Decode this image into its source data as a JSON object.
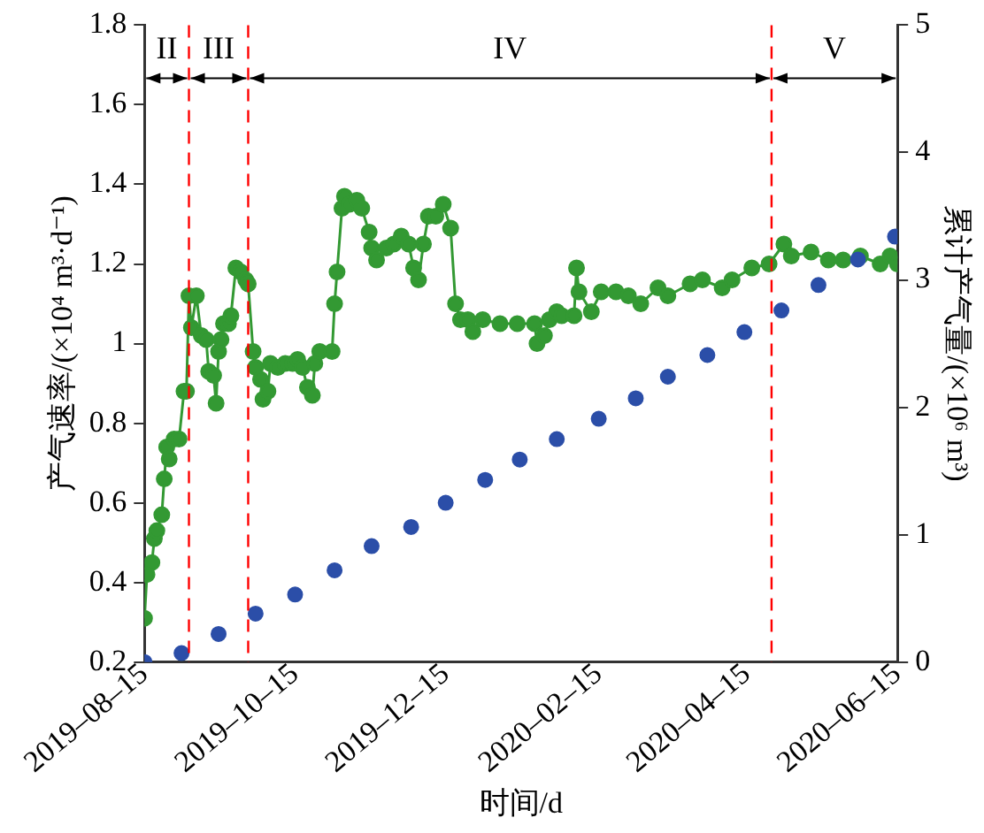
{
  "chart_data": {
    "type": "line",
    "xlabel": "时间/d",
    "ylabel": "产气速率/(×10⁴ m³·d⁻¹)",
    "y2label": "累计产气量/(×10⁶ m³)",
    "xlim": [
      "2019-08-15",
      "2020-06-15"
    ],
    "xticks": [
      {
        "value": "2019-08-15",
        "label": "2019–08–15"
      },
      {
        "value": "2019-10-15",
        "label": "2019–10–15"
      },
      {
        "value": "2019-12-15",
        "label": "2019–12–15"
      },
      {
        "value": "2020-02-15",
        "label": "2020–02–15"
      },
      {
        "value": "2020-04-15",
        "label": "2020–04–15"
      },
      {
        "value": "2020-06-15",
        "label": "2020–06–15"
      }
    ],
    "ylim": [
      0.2,
      1.8
    ],
    "yticks": [
      0.2,
      0.4,
      0.6,
      0.8,
      1.0,
      1.2,
      1.4,
      1.6,
      1.8
    ],
    "y2lim": [
      0,
      5
    ],
    "y2ticks": [
      0,
      1,
      2,
      3,
      4,
      5
    ],
    "grid": false,
    "legend": false,
    "marker": "circle",
    "series": [
      {
        "color": "#339933",
        "line_style": "solid",
        "x": [
          "2019-08-15",
          "2019-08-16",
          "2019-08-18",
          "2019-08-19",
          "2019-08-20",
          "2019-08-22",
          "2019-08-23",
          "2019-08-24",
          "2019-08-25",
          "2019-08-27",
          "2019-08-29",
          "2019-08-31",
          "2019-09-01",
          "2019-09-02",
          "2019-09-03",
          "2019-09-05",
          "2019-09-07",
          "2019-09-09",
          "2019-09-10",
          "2019-09-12",
          "2019-09-13",
          "2019-09-14",
          "2019-09-15",
          "2019-09-16",
          "2019-09-18",
          "2019-09-19",
          "2019-09-21",
          "2019-09-23",
          "2019-09-25",
          "2019-09-26",
          "2019-09-28",
          "2019-09-29",
          "2019-10-01",
          "2019-10-02",
          "2019-10-04",
          "2019-10-05",
          "2019-10-08",
          "2019-10-11",
          "2019-10-14",
          "2019-10-16",
          "2019-10-18",
          "2019-10-20",
          "2019-10-22",
          "2019-10-23",
          "2019-10-25",
          "2019-10-30",
          "2019-10-31",
          "2019-11-01",
          "2019-11-03",
          "2019-11-04",
          "2019-11-06",
          "2019-11-09",
          "2019-11-11",
          "2019-11-14",
          "2019-11-15",
          "2019-11-17",
          "2019-11-21",
          "2019-11-24",
          "2019-11-27",
          "2019-11-30",
          "2019-12-02",
          "2019-12-04",
          "2019-12-06",
          "2019-12-08",
          "2019-12-11",
          "2019-12-14",
          "2019-12-17",
          "2019-12-19",
          "2019-12-21",
          "2019-12-24",
          "2019-12-26",
          "2019-12-30",
          "2020-01-06",
          "2020-01-13",
          "2020-01-20",
          "2020-01-21",
          "2020-01-24",
          "2020-01-26",
          "2020-01-29",
          "2020-01-31",
          "2020-02-05",
          "2020-02-06",
          "2020-02-07",
          "2020-02-12",
          "2020-02-16",
          "2020-02-22",
          "2020-02-27",
          "2020-03-03",
          "2020-03-10",
          "2020-03-14",
          "2020-03-23",
          "2020-03-28",
          "2020-04-05",
          "2020-04-09",
          "2020-04-17",
          "2020-04-24",
          "2020-04-30",
          "2020-05-03",
          "2020-05-11",
          "2020-05-18",
          "2020-05-24",
          "2020-05-31",
          "2020-06-08",
          "2020-06-12",
          "2020-06-15"
        ],
        "values": [
          0.31,
          0.42,
          0.45,
          0.51,
          0.53,
          0.57,
          0.66,
          0.74,
          0.71,
          0.76,
          0.76,
          0.88,
          0.88,
          1.12,
          1.04,
          1.12,
          1.02,
          1.01,
          0.93,
          0.92,
          0.85,
          0.98,
          1.01,
          1.05,
          1.05,
          1.07,
          1.19,
          1.18,
          1.16,
          1.15,
          0.98,
          0.94,
          0.91,
          0.86,
          0.88,
          0.95,
          0.94,
          0.95,
          0.95,
          0.96,
          0.94,
          0.89,
          0.87,
          0.95,
          0.98,
          0.98,
          1.1,
          1.18,
          1.34,
          1.37,
          1.35,
          1.36,
          1.34,
          1.28,
          1.24,
          1.21,
          1.24,
          1.25,
          1.27,
          1.25,
          1.19,
          1.16,
          1.25,
          1.32,
          1.32,
          1.35,
          1.29,
          1.1,
          1.06,
          1.06,
          1.03,
          1.06,
          1.05,
          1.05,
          1.05,
          1.0,
          1.02,
          1.06,
          1.08,
          1.07,
          1.07,
          1.19,
          1.13,
          1.08,
          1.13,
          1.13,
          1.12,
          1.1,
          1.14,
          1.12,
          1.15,
          1.16,
          1.14,
          1.16,
          1.19,
          1.2,
          1.25,
          1.22,
          1.23,
          1.21,
          1.21,
          1.22,
          1.2,
          1.22,
          1.2
        ]
      },
      {
        "type": "scatter",
        "axis": "y2",
        "color": "#2b4ea8",
        "x": [
          "2019-08-15",
          "2019-08-30",
          "2019-09-14",
          "2019-09-29",
          "2019-10-15",
          "2019-10-31",
          "2019-11-15",
          "2019-12-01",
          "2019-12-15",
          "2019-12-31",
          "2020-01-14",
          "2020-01-29",
          "2020-02-15",
          "2020-03-01",
          "2020-03-14",
          "2020-03-30",
          "2020-04-14",
          "2020-04-29",
          "2020-05-14",
          "2020-05-30",
          "2020-06-14"
        ],
        "values": [
          0,
          0.07,
          0.22,
          0.38,
          0.53,
          0.72,
          0.91,
          1.06,
          1.25,
          1.43,
          1.59,
          1.75,
          1.91,
          2.07,
          2.24,
          2.41,
          2.59,
          2.76,
          2.96,
          3.16,
          3.34
        ]
      }
    ],
    "ref_lines": [
      {
        "axis": "x",
        "value": "2019-09-02",
        "color": "#ff0000",
        "line_style": "dashed"
      },
      {
        "axis": "x",
        "value": "2019-09-26",
        "color": "#ff0000",
        "line_style": "dashed"
      },
      {
        "axis": "x",
        "value": "2020-04-25",
        "color": "#ff0000",
        "line_style": "dashed"
      }
    ],
    "annotations": [
      "II",
      "III",
      "IV",
      "V"
    ]
  }
}
